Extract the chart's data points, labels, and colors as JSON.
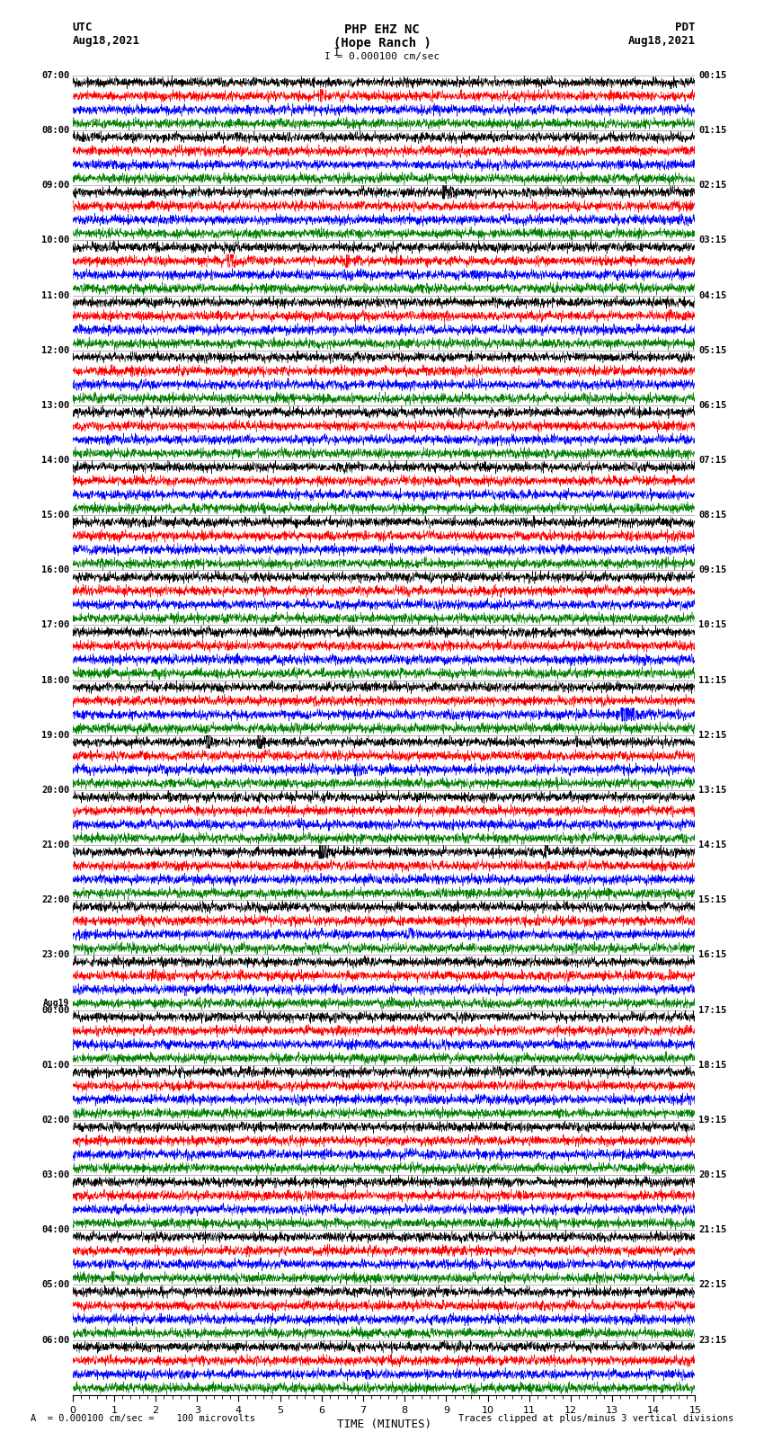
{
  "title_line1": "PHP EHZ NC",
  "title_line2": "(Hope Ranch )",
  "title_line3": "I = 0.000100 cm/sec",
  "label_utc": "UTC",
  "label_pdt": "PDT",
  "date_left_top": "Aug18,2021",
  "date_right_top": "Aug18,2021",
  "xlabel": "TIME (MINUTES)",
  "footer_left": "A  = 0.000100 cm/sec =    100 microvolts",
  "footer_right": "Traces clipped at plus/minus 3 vertical divisions",
  "bg_color": "#ffffff",
  "plot_bg": "#ffffff",
  "colors_cycle": [
    "#000000",
    "#ff0000",
    "#0000ff",
    "#008000"
  ],
  "n_rows": 96,
  "xmin": 0,
  "xmax": 15,
  "left_time_labels": [
    [
      "07:00",
      0
    ],
    [
      "08:00",
      4
    ],
    [
      "09:00",
      8
    ],
    [
      "10:00",
      12
    ],
    [
      "11:00",
      16
    ],
    [
      "12:00",
      20
    ],
    [
      "13:00",
      24
    ],
    [
      "14:00",
      28
    ],
    [
      "15:00",
      32
    ],
    [
      "16:00",
      36
    ],
    [
      "17:00",
      40
    ],
    [
      "18:00",
      44
    ],
    [
      "19:00",
      48
    ],
    [
      "20:00",
      52
    ],
    [
      "21:00",
      56
    ],
    [
      "22:00",
      60
    ],
    [
      "23:00",
      64
    ],
    [
      "Aug19",
      68
    ],
    [
      "00:00",
      68
    ],
    [
      "01:00",
      72
    ],
    [
      "02:00",
      76
    ],
    [
      "03:00",
      80
    ],
    [
      "04:00",
      84
    ],
    [
      "05:00",
      88
    ],
    [
      "06:00",
      92
    ]
  ],
  "right_time_labels": [
    [
      "00:15",
      0
    ],
    [
      "01:15",
      4
    ],
    [
      "02:15",
      8
    ],
    [
      "03:15",
      12
    ],
    [
      "04:15",
      16
    ],
    [
      "05:15",
      20
    ],
    [
      "06:15",
      24
    ],
    [
      "07:15",
      28
    ],
    [
      "08:15",
      32
    ],
    [
      "09:15",
      36
    ],
    [
      "10:15",
      40
    ],
    [
      "11:15",
      44
    ],
    [
      "12:15",
      48
    ],
    [
      "13:15",
      52
    ],
    [
      "14:15",
      56
    ],
    [
      "15:15",
      60
    ],
    [
      "16:15",
      64
    ],
    [
      "17:15",
      68
    ],
    [
      "18:15",
      72
    ],
    [
      "19:15",
      76
    ],
    [
      "20:15",
      80
    ],
    [
      "21:15",
      84
    ],
    [
      "22:15",
      88
    ],
    [
      "23:15",
      92
    ]
  ]
}
